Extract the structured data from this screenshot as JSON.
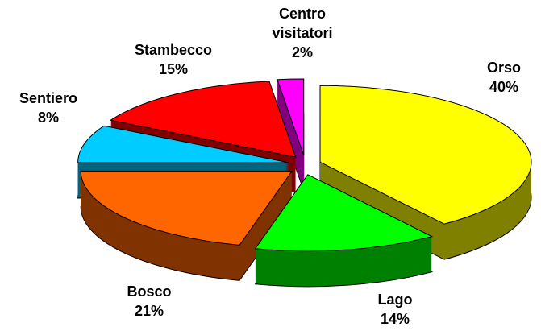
{
  "chart_data": {
    "type": "pie3d",
    "categories": [
      "Orso",
      "Lago",
      "Bosco",
      "Sentiero",
      "Stambecco",
      "Centro visitatori"
    ],
    "values": [
      40,
      14,
      21,
      8,
      15,
      2
    ],
    "value_labels": [
      "40%",
      "14%",
      "21%",
      "8%",
      "15%",
      "2%"
    ],
    "colors": [
      "#ffff00",
      "#00ff00",
      "#ff6600",
      "#00ccff",
      "#ff0000",
      "#ff00ff"
    ]
  }
}
